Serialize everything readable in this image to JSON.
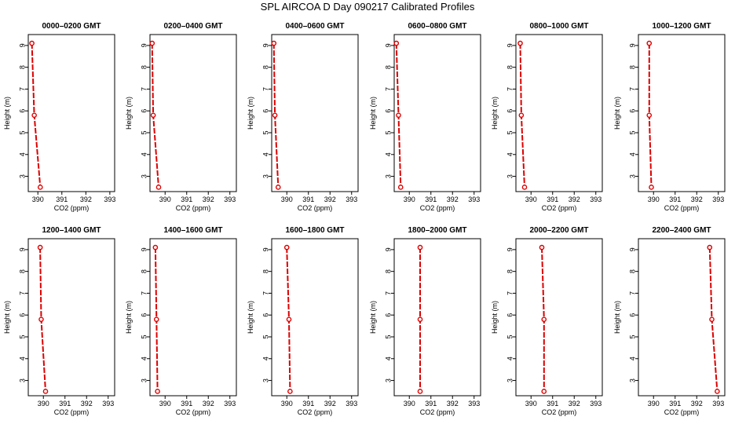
{
  "figure": {
    "title": "SPL AIRCOA D  Day 090217  Calibrated Profiles"
  },
  "colors": {
    "series": "#dd0000",
    "frame": "#000000",
    "background": "#ffffff"
  },
  "chart_data": [
    {
      "type": "line",
      "title": "0000–0200 GMT",
      "xlabel": "CO2 (ppm)",
      "ylabel": "Height (m)",
      "xlim": [
        389.6,
        393.2
      ],
      "ylim": [
        2.3,
        9.5
      ],
      "xticks": [
        390,
        391,
        392,
        393
      ],
      "yticks": [
        3,
        4,
        5,
        6,
        7,
        8,
        9
      ],
      "x": [
        389.75,
        389.85,
        390.1
      ],
      "y": [
        9.1,
        5.8,
        2.5
      ]
    },
    {
      "type": "line",
      "title": "0200–0400 GMT",
      "xlabel": "CO2 (ppm)",
      "ylabel": "Height (m)",
      "xlim": [
        389.3,
        393.3
      ],
      "ylim": [
        2.3,
        9.5
      ],
      "xticks": [
        390,
        391,
        392,
        393
      ],
      "yticks": [
        3,
        4,
        5,
        6,
        7,
        8,
        9
      ],
      "x": [
        389.4,
        389.45,
        389.7
      ],
      "y": [
        9.1,
        5.8,
        2.5
      ]
    },
    {
      "type": "line",
      "title": "0400–0600 GMT",
      "xlabel": "CO2 (ppm)",
      "ylabel": "Height (m)",
      "xlim": [
        389.3,
        393.3
      ],
      "ylim": [
        2.3,
        9.5
      ],
      "xticks": [
        390,
        391,
        392,
        393
      ],
      "yticks": [
        3,
        4,
        5,
        6,
        7,
        8,
        9
      ],
      "x": [
        389.4,
        389.45,
        389.6
      ],
      "y": [
        9.1,
        5.8,
        2.5
      ]
    },
    {
      "type": "line",
      "title": "0600–0800 GMT",
      "xlabel": "CO2 (ppm)",
      "ylabel": "Height (m)",
      "xlim": [
        389.3,
        393.3
      ],
      "ylim": [
        2.3,
        9.5
      ],
      "xticks": [
        390,
        391,
        392,
        393
      ],
      "yticks": [
        3,
        4,
        5,
        6,
        7,
        8,
        9
      ],
      "x": [
        389.4,
        389.5,
        389.6
      ],
      "y": [
        9.1,
        5.8,
        2.5
      ]
    },
    {
      "type": "line",
      "title": "0800–1000 GMT",
      "xlabel": "CO2 (ppm)",
      "ylabel": "Height (m)",
      "xlim": [
        389.3,
        393.3
      ],
      "ylim": [
        2.3,
        9.5
      ],
      "xticks": [
        390,
        391,
        392,
        393
      ],
      "yticks": [
        3,
        4,
        5,
        6,
        7,
        8,
        9
      ],
      "x": [
        389.5,
        389.55,
        389.7
      ],
      "y": [
        9.1,
        5.8,
        2.5
      ]
    },
    {
      "type": "line",
      "title": "1000–1200 GMT",
      "xlabel": "CO2 (ppm)",
      "ylabel": "Height (m)",
      "xlim": [
        389.3,
        393.3
      ],
      "ylim": [
        2.3,
        9.5
      ],
      "xticks": [
        390,
        391,
        392,
        393
      ],
      "yticks": [
        3,
        4,
        5,
        6,
        7,
        8,
        9
      ],
      "x": [
        389.8,
        389.8,
        389.9
      ],
      "y": [
        9.1,
        5.8,
        2.5
      ]
    },
    {
      "type": "line",
      "title": "1200–1400 GMT",
      "xlabel": "CO2 (ppm)",
      "ylabel": "Height (m)",
      "xlim": [
        389.3,
        393.3
      ],
      "ylim": [
        2.3,
        9.5
      ],
      "xticks": [
        390,
        391,
        392,
        393
      ],
      "yticks": [
        3,
        4,
        5,
        6,
        7,
        8,
        9
      ],
      "x": [
        389.85,
        389.9,
        390.1
      ],
      "y": [
        9.1,
        5.8,
        2.5
      ]
    },
    {
      "type": "line",
      "title": "1400–1600 GMT",
      "xlabel": "CO2 (ppm)",
      "ylabel": "Height (m)",
      "xlim": [
        389.3,
        393.3
      ],
      "ylim": [
        2.3,
        9.5
      ],
      "xticks": [
        390,
        391,
        392,
        393
      ],
      "yticks": [
        3,
        4,
        5,
        6,
        7,
        8,
        9
      ],
      "x": [
        389.55,
        389.6,
        389.65
      ],
      "y": [
        9.1,
        5.8,
        2.5
      ]
    },
    {
      "type": "line",
      "title": "1600–1800 GMT",
      "xlabel": "CO2 (ppm)",
      "ylabel": "Height (m)",
      "xlim": [
        389.3,
        393.3
      ],
      "ylim": [
        2.3,
        9.5
      ],
      "xticks": [
        390,
        391,
        392,
        393
      ],
      "yticks": [
        3,
        4,
        5,
        6,
        7,
        8,
        9
      ],
      "x": [
        390.0,
        390.1,
        390.15
      ],
      "y": [
        9.1,
        5.8,
        2.5
      ]
    },
    {
      "type": "line",
      "title": "1800–2000 GMT",
      "xlabel": "CO2 (ppm)",
      "ylabel": "Height (m)",
      "xlim": [
        389.3,
        393.3
      ],
      "ylim": [
        2.3,
        9.5
      ],
      "xticks": [
        390,
        391,
        392,
        393
      ],
      "yticks": [
        3,
        4,
        5,
        6,
        7,
        8,
        9
      ],
      "x": [
        390.5,
        390.5,
        390.5
      ],
      "y": [
        9.1,
        5.8,
        2.5
      ]
    },
    {
      "type": "line",
      "title": "2000–2200 GMT",
      "xlabel": "CO2 (ppm)",
      "ylabel": "Height (m)",
      "xlim": [
        389.3,
        393.3
      ],
      "ylim": [
        2.3,
        9.5
      ],
      "xticks": [
        390,
        391,
        392,
        393
      ],
      "yticks": [
        3,
        4,
        5,
        6,
        7,
        8,
        9
      ],
      "x": [
        390.5,
        390.6,
        390.6
      ],
      "y": [
        9.1,
        5.8,
        2.5
      ]
    },
    {
      "type": "line",
      "title": "2200–2400 GMT",
      "xlabel": "CO2 (ppm)",
      "ylabel": "Height (m)",
      "xlim": [
        389.3,
        393.3
      ],
      "ylim": [
        2.3,
        9.5
      ],
      "xticks": [
        390,
        391,
        392,
        393
      ],
      "yticks": [
        3,
        4,
        5,
        6,
        7,
        8,
        9
      ],
      "x": [
        392.6,
        392.7,
        392.95
      ],
      "y": [
        9.1,
        5.8,
        2.5
      ]
    }
  ]
}
